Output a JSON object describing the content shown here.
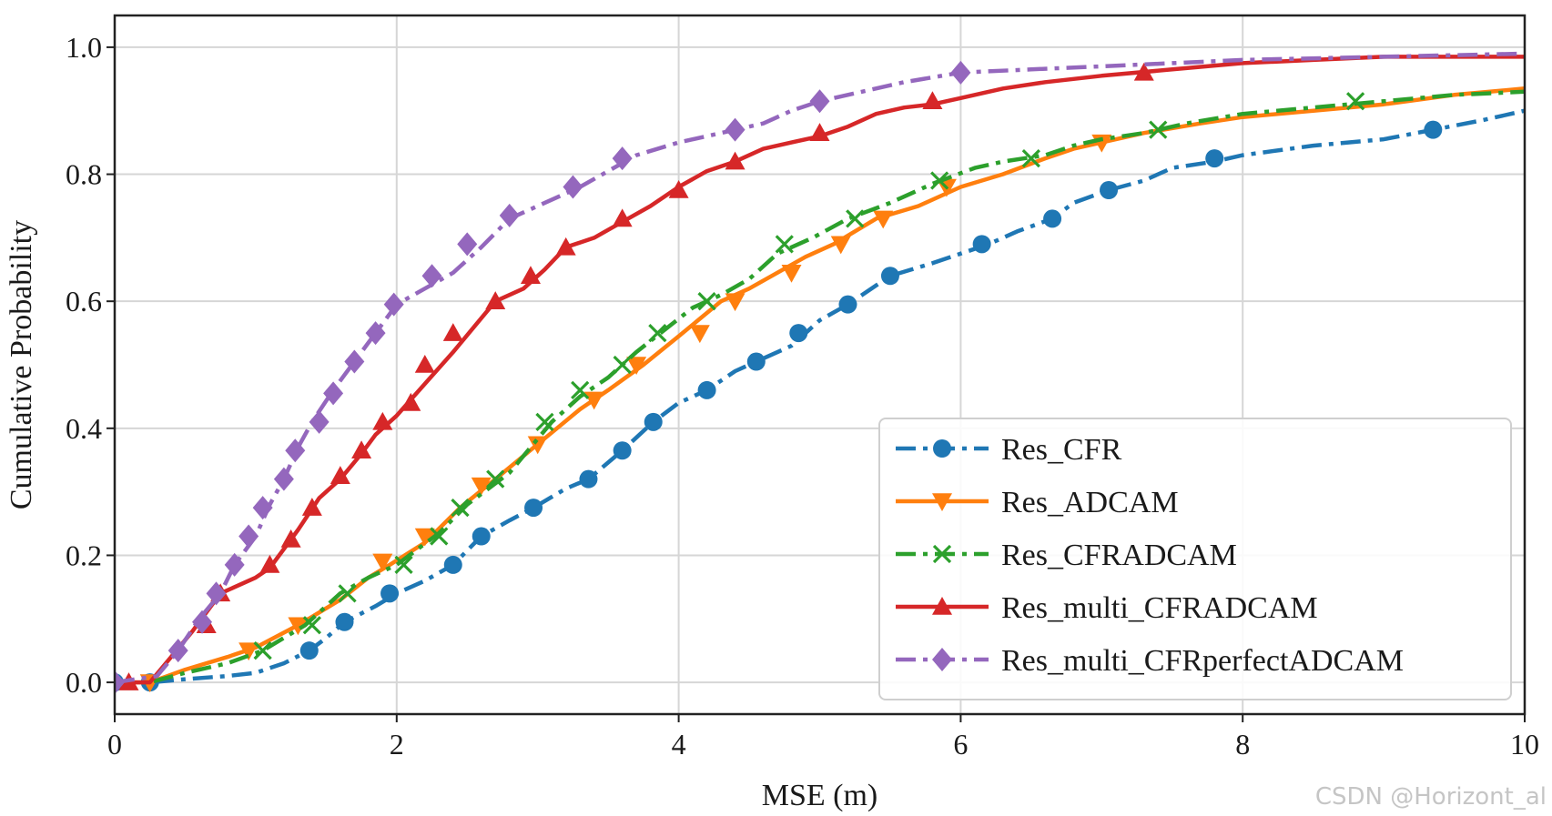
{
  "watermark": "CSDN @Horizont_al",
  "chart_data": {
    "type": "line",
    "title": "",
    "xlabel": "MSE (m)",
    "ylabel": "Cumulative Probability",
    "xlim": [
      0,
      10
    ],
    "ylim": [
      -0.05,
      1.05
    ],
    "xticks": [
      0,
      2,
      4,
      6,
      8,
      10
    ],
    "yticks": [
      0.0,
      0.2,
      0.4,
      0.6,
      0.8,
      1.0
    ],
    "xtick_labels": [
      "0",
      "2",
      "4",
      "6",
      "8",
      "10"
    ],
    "ytick_labels": [
      "0.0",
      "0.2",
      "0.4",
      "0.6",
      "0.8",
      "1.0"
    ],
    "grid": true,
    "legend_position": "lower-right",
    "series": [
      {
        "name": "Res_CFR",
        "color": "#1f77b4",
        "dash": "dashdot",
        "marker": "circle",
        "points": [
          [
            0.0,
            0.0
          ],
          [
            0.25,
            0.0
          ],
          [
            0.5,
            0.005
          ],
          [
            0.8,
            0.01
          ],
          [
            1.0,
            0.015
          ],
          [
            1.2,
            0.03
          ],
          [
            1.38,
            0.05
          ],
          [
            1.5,
            0.07
          ],
          [
            1.63,
            0.095
          ],
          [
            1.85,
            0.12
          ],
          [
            2.0,
            0.14
          ],
          [
            2.2,
            0.16
          ],
          [
            2.4,
            0.185
          ],
          [
            2.6,
            0.23
          ],
          [
            2.8,
            0.255
          ],
          [
            2.97,
            0.275
          ],
          [
            3.2,
            0.305
          ],
          [
            3.36,
            0.32
          ],
          [
            3.6,
            0.365
          ],
          [
            3.82,
            0.41
          ],
          [
            4.0,
            0.44
          ],
          [
            4.2,
            0.46
          ],
          [
            4.4,
            0.49
          ],
          [
            4.55,
            0.505
          ],
          [
            4.8,
            0.53
          ],
          [
            5.0,
            0.57
          ],
          [
            5.2,
            0.595
          ],
          [
            5.5,
            0.64
          ],
          [
            5.8,
            0.66
          ],
          [
            6.0,
            0.675
          ],
          [
            6.2,
            0.69
          ],
          [
            6.4,
            0.71
          ],
          [
            6.65,
            0.73
          ],
          [
            6.8,
            0.755
          ],
          [
            7.05,
            0.775
          ],
          [
            7.3,
            0.79
          ],
          [
            7.5,
            0.81
          ],
          [
            7.8,
            0.82
          ],
          [
            8.0,
            0.83
          ],
          [
            8.5,
            0.845
          ],
          [
            9.0,
            0.855
          ],
          [
            9.35,
            0.87
          ],
          [
            9.7,
            0.885
          ],
          [
            10.0,
            0.9
          ]
        ],
        "markers": [
          [
            0.0,
            0.0
          ],
          [
            0.25,
            0.0
          ],
          [
            1.38,
            0.05
          ],
          [
            1.63,
            0.095
          ],
          [
            1.95,
            0.14
          ],
          [
            2.4,
            0.185
          ],
          [
            2.6,
            0.23
          ],
          [
            2.97,
            0.275
          ],
          [
            3.36,
            0.32
          ],
          [
            3.6,
            0.365
          ],
          [
            3.82,
            0.41
          ],
          [
            4.2,
            0.46
          ],
          [
            4.55,
            0.505
          ],
          [
            4.85,
            0.55
          ],
          [
            5.2,
            0.595
          ],
          [
            5.5,
            0.64
          ],
          [
            6.15,
            0.69
          ],
          [
            6.65,
            0.73
          ],
          [
            7.05,
            0.775
          ],
          [
            7.8,
            0.825
          ],
          [
            9.35,
            0.87
          ]
        ]
      },
      {
        "name": "Res_ADCAM",
        "color": "#ff7f0e",
        "dash": "solid",
        "marker": "triangle-down",
        "points": [
          [
            0.0,
            0.0
          ],
          [
            0.25,
            0.0
          ],
          [
            0.5,
            0.02
          ],
          [
            0.8,
            0.04
          ],
          [
            1.0,
            0.055
          ],
          [
            1.3,
            0.09
          ],
          [
            1.6,
            0.13
          ],
          [
            1.8,
            0.165
          ],
          [
            1.95,
            0.185
          ],
          [
            2.2,
            0.22
          ],
          [
            2.45,
            0.275
          ],
          [
            2.7,
            0.32
          ],
          [
            3.0,
            0.375
          ],
          [
            3.3,
            0.43
          ],
          [
            3.5,
            0.46
          ],
          [
            3.75,
            0.5
          ],
          [
            4.0,
            0.545
          ],
          [
            4.3,
            0.6
          ],
          [
            4.5,
            0.62
          ],
          [
            4.7,
            0.645
          ],
          [
            4.9,
            0.67
          ],
          [
            5.1,
            0.69
          ],
          [
            5.4,
            0.73
          ],
          [
            5.7,
            0.75
          ],
          [
            6.0,
            0.78
          ],
          [
            6.3,
            0.8
          ],
          [
            6.6,
            0.825
          ],
          [
            6.8,
            0.84
          ],
          [
            7.0,
            0.85
          ],
          [
            7.3,
            0.865
          ],
          [
            7.7,
            0.88
          ],
          [
            8.0,
            0.89
          ],
          [
            8.5,
            0.9
          ],
          [
            9.0,
            0.91
          ],
          [
            9.5,
            0.925
          ],
          [
            10.0,
            0.935
          ]
        ],
        "markers": [
          [
            0.25,
            0.0
          ],
          [
            0.95,
            0.05
          ],
          [
            1.3,
            0.09
          ],
          [
            1.9,
            0.19
          ],
          [
            2.2,
            0.23
          ],
          [
            2.6,
            0.31
          ],
          [
            3.0,
            0.375
          ],
          [
            3.4,
            0.445
          ],
          [
            3.7,
            0.5
          ],
          [
            4.15,
            0.55
          ],
          [
            4.4,
            0.6
          ],
          [
            4.8,
            0.645
          ],
          [
            5.15,
            0.69
          ],
          [
            5.45,
            0.73
          ],
          [
            5.9,
            0.78
          ],
          [
            7.0,
            0.85
          ]
        ]
      },
      {
        "name": "Res_CFRADCAM",
        "color": "#2ca02c",
        "dash": "dashdot",
        "marker": "x",
        "points": [
          [
            0.0,
            0.0
          ],
          [
            0.25,
            0.0
          ],
          [
            0.5,
            0.015
          ],
          [
            0.8,
            0.03
          ],
          [
            1.05,
            0.05
          ],
          [
            1.35,
            0.09
          ],
          [
            1.6,
            0.14
          ],
          [
            1.8,
            0.165
          ],
          [
            2.0,
            0.185
          ],
          [
            2.3,
            0.235
          ],
          [
            2.5,
            0.28
          ],
          [
            2.8,
            0.33
          ],
          [
            3.1,
            0.41
          ],
          [
            3.3,
            0.45
          ],
          [
            3.5,
            0.48
          ],
          [
            3.7,
            0.52
          ],
          [
            3.9,
            0.555
          ],
          [
            4.1,
            0.59
          ],
          [
            4.3,
            0.61
          ],
          [
            4.5,
            0.635
          ],
          [
            4.7,
            0.675
          ],
          [
            4.95,
            0.7
          ],
          [
            5.2,
            0.73
          ],
          [
            5.5,
            0.755
          ],
          [
            5.8,
            0.785
          ],
          [
            6.1,
            0.81
          ],
          [
            6.3,
            0.82
          ],
          [
            6.6,
            0.83
          ],
          [
            6.8,
            0.845
          ],
          [
            7.0,
            0.855
          ],
          [
            7.3,
            0.865
          ],
          [
            7.6,
            0.88
          ],
          [
            8.0,
            0.895
          ],
          [
            8.5,
            0.905
          ],
          [
            9.0,
            0.915
          ],
          [
            9.5,
            0.925
          ],
          [
            10.0,
            0.93
          ]
        ],
        "markers": [
          [
            1.05,
            0.05
          ],
          [
            1.4,
            0.09
          ],
          [
            1.65,
            0.14
          ],
          [
            2.05,
            0.185
          ],
          [
            2.3,
            0.23
          ],
          [
            2.45,
            0.275
          ],
          [
            2.7,
            0.32
          ],
          [
            3.05,
            0.41
          ],
          [
            3.3,
            0.46
          ],
          [
            3.6,
            0.5
          ],
          [
            3.85,
            0.55
          ],
          [
            4.2,
            0.6
          ],
          [
            4.75,
            0.69
          ],
          [
            5.25,
            0.73
          ],
          [
            5.85,
            0.79
          ],
          [
            6.5,
            0.825
          ],
          [
            7.4,
            0.87
          ],
          [
            8.8,
            0.915
          ]
        ]
      },
      {
        "name": "Res_multi_CFRADCAM",
        "color": "#d62728",
        "dash": "solid",
        "marker": "triangle-up",
        "points": [
          [
            0.0,
            0.0
          ],
          [
            0.25,
            0.0
          ],
          [
            0.4,
            0.04
          ],
          [
            0.55,
            0.08
          ],
          [
            0.75,
            0.14
          ],
          [
            1.0,
            0.165
          ],
          [
            1.1,
            0.18
          ],
          [
            1.3,
            0.24
          ],
          [
            1.45,
            0.29
          ],
          [
            1.6,
            0.32
          ],
          [
            1.75,
            0.36
          ],
          [
            1.85,
            0.39
          ],
          [
            2.0,
            0.42
          ],
          [
            2.2,
            0.47
          ],
          [
            2.4,
            0.52
          ],
          [
            2.55,
            0.56
          ],
          [
            2.7,
            0.6
          ],
          [
            2.9,
            0.62
          ],
          [
            3.05,
            0.65
          ],
          [
            3.2,
            0.685
          ],
          [
            3.4,
            0.7
          ],
          [
            3.6,
            0.725
          ],
          [
            3.8,
            0.75
          ],
          [
            4.0,
            0.78
          ],
          [
            4.2,
            0.805
          ],
          [
            4.4,
            0.82
          ],
          [
            4.6,
            0.84
          ],
          [
            4.8,
            0.85
          ],
          [
            5.0,
            0.86
          ],
          [
            5.2,
            0.875
          ],
          [
            5.4,
            0.895
          ],
          [
            5.6,
            0.905
          ],
          [
            5.8,
            0.91
          ],
          [
            6.0,
            0.92
          ],
          [
            6.3,
            0.935
          ],
          [
            6.6,
            0.945
          ],
          [
            7.0,
            0.955
          ],
          [
            7.5,
            0.965
          ],
          [
            8.0,
            0.975
          ],
          [
            8.5,
            0.98
          ],
          [
            9.0,
            0.985
          ],
          [
            10.0,
            0.985
          ]
        ],
        "markers": [
          [
            0.1,
            0.0
          ],
          [
            0.65,
            0.09
          ],
          [
            0.75,
            0.14
          ],
          [
            1.1,
            0.185
          ],
          [
            1.25,
            0.225
          ],
          [
            1.4,
            0.275
          ],
          [
            1.6,
            0.325
          ],
          [
            1.75,
            0.365
          ],
          [
            1.9,
            0.41
          ],
          [
            2.1,
            0.44
          ],
          [
            2.2,
            0.5
          ],
          [
            2.4,
            0.55
          ],
          [
            2.7,
            0.6
          ],
          [
            2.95,
            0.64
          ],
          [
            3.2,
            0.685
          ],
          [
            3.6,
            0.73
          ],
          [
            4.0,
            0.775
          ],
          [
            4.4,
            0.82
          ],
          [
            5.0,
            0.865
          ],
          [
            5.8,
            0.915
          ],
          [
            7.3,
            0.96
          ]
        ]
      },
      {
        "name": "Res_multi_CFRperfectADCAM",
        "color": "#9467bd",
        "dash": "dashdot",
        "marker": "diamond",
        "points": [
          [
            0.0,
            0.0
          ],
          [
            0.3,
            0.01
          ],
          [
            0.45,
            0.05
          ],
          [
            0.6,
            0.1
          ],
          [
            0.75,
            0.14
          ],
          [
            0.85,
            0.185
          ],
          [
            1.0,
            0.23
          ],
          [
            1.1,
            0.28
          ],
          [
            1.2,
            0.32
          ],
          [
            1.3,
            0.37
          ],
          [
            1.4,
            0.41
          ],
          [
            1.55,
            0.46
          ],
          [
            1.7,
            0.505
          ],
          [
            1.85,
            0.55
          ],
          [
            2.0,
            0.595
          ],
          [
            2.2,
            0.62
          ],
          [
            2.4,
            0.645
          ],
          [
            2.6,
            0.685
          ],
          [
            2.8,
            0.73
          ],
          [
            3.0,
            0.75
          ],
          [
            3.3,
            0.78
          ],
          [
            3.5,
            0.805
          ],
          [
            3.7,
            0.83
          ],
          [
            4.0,
            0.85
          ],
          [
            4.3,
            0.865
          ],
          [
            4.6,
            0.88
          ],
          [
            4.8,
            0.9
          ],
          [
            5.0,
            0.915
          ],
          [
            5.3,
            0.93
          ],
          [
            5.6,
            0.945
          ],
          [
            6.0,
            0.96
          ],
          [
            6.5,
            0.965
          ],
          [
            7.0,
            0.97
          ],
          [
            7.5,
            0.975
          ],
          [
            8.0,
            0.98
          ],
          [
            9.0,
            0.985
          ],
          [
            10.0,
            0.99
          ]
        ],
        "markers": [
          [
            0.0,
            0.0
          ],
          [
            0.45,
            0.05
          ],
          [
            0.62,
            0.095
          ],
          [
            0.72,
            0.14
          ],
          [
            0.85,
            0.185
          ],
          [
            0.95,
            0.23
          ],
          [
            1.05,
            0.275
          ],
          [
            1.2,
            0.32
          ],
          [
            1.28,
            0.365
          ],
          [
            1.45,
            0.41
          ],
          [
            1.55,
            0.455
          ],
          [
            1.7,
            0.505
          ],
          [
            1.85,
            0.55
          ],
          [
            1.98,
            0.595
          ],
          [
            2.25,
            0.64
          ],
          [
            2.5,
            0.69
          ],
          [
            2.8,
            0.735
          ],
          [
            3.25,
            0.78
          ],
          [
            3.6,
            0.825
          ],
          [
            4.4,
            0.87
          ],
          [
            5.0,
            0.915
          ],
          [
            6.0,
            0.96
          ]
        ]
      }
    ]
  }
}
